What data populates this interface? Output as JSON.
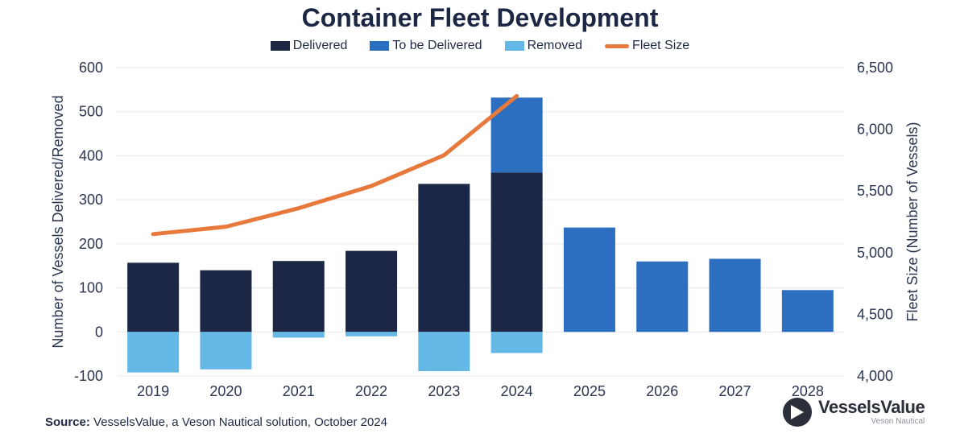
{
  "chart_data": {
    "type": "bar",
    "title": "Container Fleet Development",
    "categories": [
      "2019",
      "2020",
      "2021",
      "2022",
      "2023",
      "2024",
      "2025",
      "2026",
      "2027",
      "2028"
    ],
    "series": [
      {
        "name": "Delivered",
        "type": "bar",
        "axis": "left",
        "color": "#1b2744",
        "values": [
          157,
          140,
          161,
          184,
          336,
          362,
          0,
          0,
          0,
          0
        ]
      },
      {
        "name": "To be Delivered",
        "type": "bar",
        "axis": "left",
        "color": "#2c6fc1",
        "values": [
          0,
          0,
          0,
          0,
          0,
          170,
          237,
          160,
          166,
          95
        ]
      },
      {
        "name": "Removed",
        "type": "bar",
        "axis": "left",
        "color": "#63b8e6",
        "values": [
          -92,
          -85,
          -13,
          -10,
          -89,
          -48,
          0,
          0,
          0,
          0
        ]
      },
      {
        "name": "Fleet Size",
        "type": "line",
        "axis": "right",
        "color": "#e8793c",
        "values": [
          5150,
          5210,
          5360,
          5540,
          5790,
          6270,
          null,
          null,
          null,
          null
        ]
      }
    ],
    "ylabel": "Number of Vessels Delivered/Removed",
    "y2label": "Fleet Size (Number of Vessels)",
    "ylim": [
      -100,
      600
    ],
    "yticks": [
      -100,
      0,
      100,
      200,
      300,
      400,
      500,
      600
    ],
    "y2lim": [
      4000,
      6500
    ],
    "y2ticks": [
      "4,000",
      "4,500",
      "5,000",
      "5,500",
      "6,000",
      "6,500"
    ],
    "grid": true,
    "legend_position": "top"
  },
  "footer": {
    "source_label": "Source:",
    "source_text": " VesselsValue, a Veson Nautical solution, October 2024"
  },
  "logo": {
    "name": "VesselsValue",
    "sub": "Veson Nautical"
  }
}
